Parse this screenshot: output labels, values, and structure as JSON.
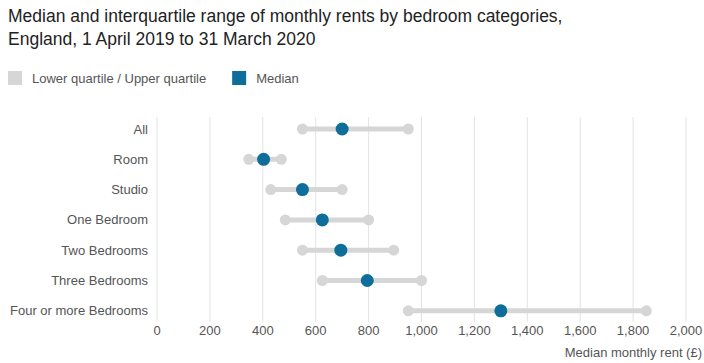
{
  "chart_data": {
    "type": "dumbbell",
    "title": "Median and interquartile range of monthly rents by bedroom categories, England, 1 April 2019 to 31 March 2020",
    "x_label": "Median monthly rent (£)",
    "orientation": "horizontal",
    "categories": [
      "All",
      "Room",
      "Studio",
      "One Bedroom",
      "Two Bedrooms",
      "Three Bedrooms",
      "Four or more Bedrooms"
    ],
    "series": [
      {
        "name": "Lower quartile / Upper quartile",
        "color": "#d6d6d6",
        "values": [
          550,
          347,
          430,
          485,
          550,
          625,
          950
        ],
        "upper": [
          950,
          470,
          700,
          800,
          895,
          1000,
          1850
        ]
      },
      {
        "name": "Median",
        "color": "#0f6e99",
        "values": [
          700,
          403,
          550,
          625,
          695,
          795,
          1300
        ]
      }
    ],
    "xlim": [
      0,
      2000
    ],
    "xticks": [
      0,
      200,
      400,
      600,
      800,
      {
        "value": 1000,
        "label": "1,000"
      },
      {
        "value": 1200,
        "label": "1,200"
      },
      {
        "value": 1400,
        "label": "1,400"
      },
      {
        "value": 1600,
        "label": "1,600"
      },
      {
        "value": 1800,
        "label": "1,800"
      },
      {
        "value": 2000,
        "label": "2,000"
      }
    ],
    "grid": true,
    "legend": "top-left"
  }
}
